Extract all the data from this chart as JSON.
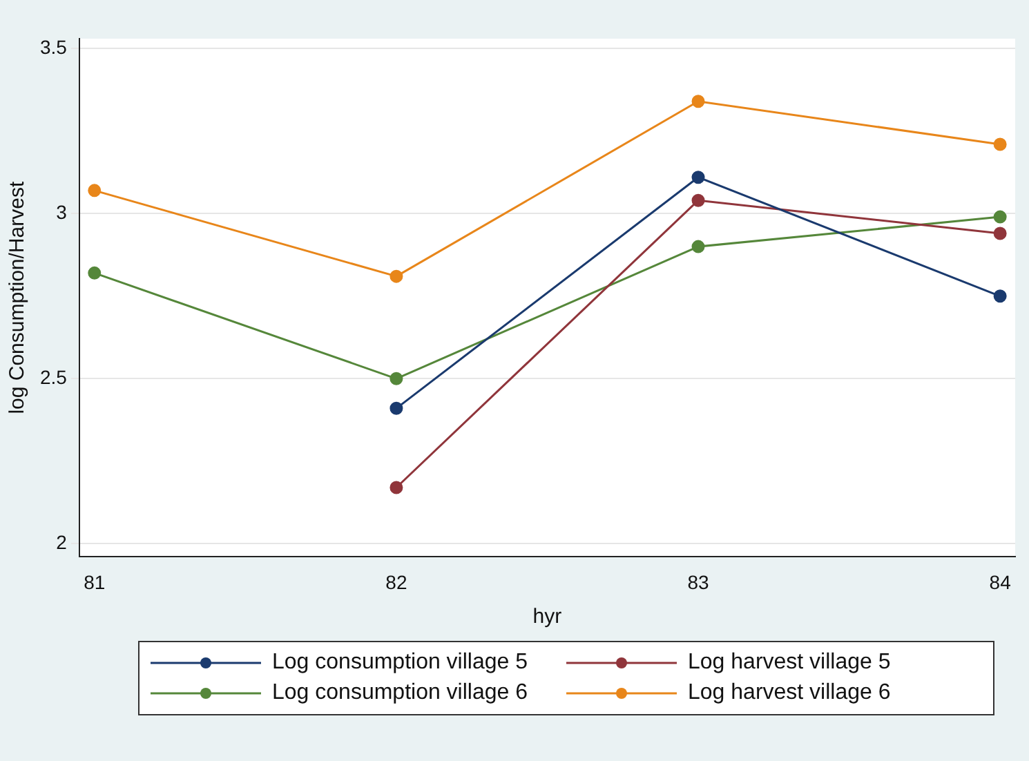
{
  "chart_data": {
    "type": "line",
    "xlabel": "hyr",
    "ylabel": "log Consumption/Harvest",
    "x": [
      81,
      82,
      83,
      84
    ],
    "xlim": [
      80.95,
      84.05
    ],
    "xticks": [
      81,
      82,
      83,
      84
    ],
    "ylim": [
      1.96,
      3.53
    ],
    "yticks": [
      2,
      2.5,
      3,
      3.5
    ],
    "series": [
      {
        "name": "Log consumption village 5",
        "color": "#1a3a6e",
        "values": [
          null,
          2.41,
          3.11,
          2.75
        ]
      },
      {
        "name": "Log harvest village 5",
        "color": "#90353b",
        "values": [
          null,
          2.17,
          3.04,
          2.94
        ]
      },
      {
        "name": "Log consumption village 6",
        "color": "#55873a",
        "values": [
          2.82,
          2.5,
          2.9,
          2.99
        ]
      },
      {
        "name": "Log harvest village 6",
        "color": "#e8861a",
        "values": [
          3.07,
          2.81,
          3.34,
          3.21
        ]
      }
    ],
    "grid": "y",
    "legend": "bottom",
    "marker": "circle",
    "line_style": "solid"
  }
}
